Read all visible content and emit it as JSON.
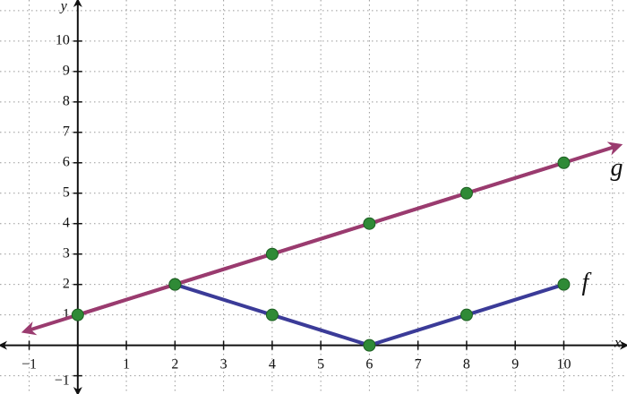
{
  "chart_data": {
    "type": "line",
    "x_label": "x",
    "y_label": "y",
    "xlim": [
      -1.6,
      11.3
    ],
    "ylim": [
      -1.6,
      11.35
    ],
    "xticks": [
      {
        "value": -1,
        "label": "−1"
      },
      1,
      2,
      3,
      4,
      5,
      6,
      7,
      8,
      9,
      10
    ],
    "yticks": [
      {
        "value": -1,
        "label": "−1"
      },
      1,
      2,
      3,
      4,
      5,
      6,
      7,
      8,
      9,
      10
    ],
    "xgrid": [
      -1,
      0,
      1,
      2,
      3,
      4,
      5,
      6,
      7,
      8,
      9,
      10,
      11
    ],
    "ygrid": [
      -1,
      0,
      1,
      2,
      3,
      4,
      5,
      6,
      7,
      8,
      9,
      10,
      11
    ],
    "grid": true,
    "marker_color": "#2f8a36",
    "series": [
      {
        "name": "f",
        "color": "#3b3b98",
        "arrows": false,
        "x": [
          2,
          4,
          6,
          8,
          10
        ],
        "values": [
          2,
          1,
          0,
          1,
          2
        ]
      },
      {
        "name": "g",
        "color": "#9a3b6f",
        "arrows": true,
        "x": [
          0,
          2,
          4,
          6,
          8,
          10
        ],
        "values": [
          1,
          2,
          3,
          4,
          5,
          6
        ]
      }
    ]
  }
}
